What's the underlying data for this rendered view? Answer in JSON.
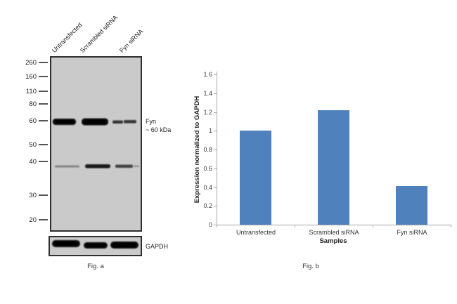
{
  "figure": {
    "fig_a": {
      "caption": "Fig. a",
      "lane_labels": [
        "Untransfected",
        "Scrambled siRNA",
        "Fyn siRNA"
      ],
      "mw_markers": [
        "260",
        "160",
        "110",
        "80",
        "60",
        "50",
        "40",
        "30",
        "20"
      ],
      "band_annotation": {
        "line1": "Fyn",
        "line2": "~ 60 kDa"
      },
      "loading_control_label": "GAPDH"
    },
    "fig_b": {
      "caption": "Fig. b"
    }
  },
  "chart_data": {
    "type": "bar",
    "categories": [
      "Untransfected",
      "Scrambled siRNA",
      "Fyn siRNA"
    ],
    "values": [
      1.0,
      1.22,
      0.41
    ],
    "title": "",
    "xlabel": "Samples",
    "ylabel": "Expression normalized to GAPDH",
    "ylim": [
      0,
      1.6
    ],
    "ytick_step": 0.2,
    "grid": false,
    "legend_position": "none",
    "bar_color": "#4f81bd",
    "axis_color": "#a6a6a6"
  },
  "colors": {
    "blot_background": "#cacaca",
    "blot_border": "#2f2f2f",
    "band": "#101010",
    "bar": "#4f81bd",
    "axis": "#a6a6a6"
  }
}
